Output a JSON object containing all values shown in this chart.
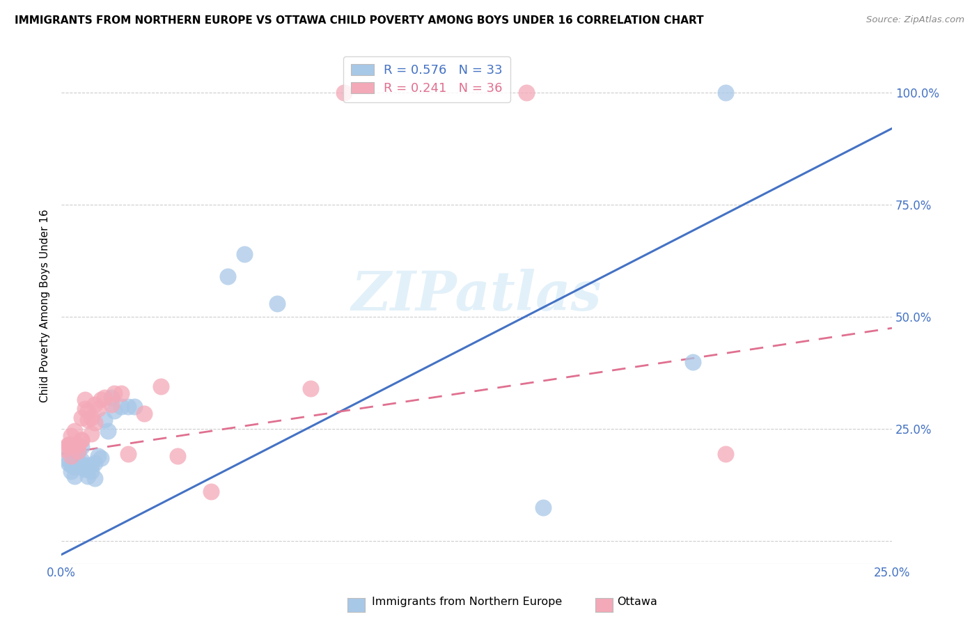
{
  "title": "IMMIGRANTS FROM NORTHERN EUROPE VS OTTAWA CHILD POVERTY AMONG BOYS UNDER 16 CORRELATION CHART",
  "source": "Source: ZipAtlas.com",
  "ylabel": "Child Poverty Among Boys Under 16",
  "xlim": [
    0.0,
    0.25
  ],
  "ylim": [
    -0.05,
    1.1
  ],
  "xticks": [
    0.0,
    0.05,
    0.1,
    0.15,
    0.2,
    0.25
  ],
  "xtick_labels": [
    "0.0%",
    "",
    "",
    "",
    "",
    "25.0%"
  ],
  "ytick_right_vals": [
    0.0,
    0.25,
    0.5,
    0.75,
    1.0
  ],
  "ytick_right_labels": [
    "",
    "25.0%",
    "50.0%",
    "75.0%",
    "100.0%"
  ],
  "legend_blue_R": "R = 0.576",
  "legend_blue_N": "N = 33",
  "legend_pink_R": "R = 0.241",
  "legend_pink_N": "N = 36",
  "blue_color": "#a8c8e8",
  "pink_color": "#f4a9b8",
  "blue_line_color": "#4472c4",
  "pink_line_color": "#e07090",
  "watermark": "ZIPatlas",
  "blue_line_x0": 0.0,
  "blue_line_y0": -0.03,
  "blue_line_x1": 0.25,
  "blue_line_y1": 0.92,
  "pink_line_x0": 0.0,
  "pink_line_y0": 0.195,
  "pink_line_x1": 0.25,
  "pink_line_y1": 0.475,
  "blue_scatter_x": [
    0.001,
    0.002,
    0.003,
    0.003,
    0.004,
    0.004,
    0.005,
    0.005,
    0.006,
    0.006,
    0.007,
    0.007,
    0.008,
    0.008,
    0.009,
    0.009,
    0.01,
    0.01,
    0.011,
    0.012,
    0.013,
    0.014,
    0.015,
    0.016,
    0.018,
    0.02,
    0.022,
    0.05,
    0.055,
    0.065,
    0.145,
    0.19,
    0.2
  ],
  "blue_scatter_y": [
    0.185,
    0.175,
    0.155,
    0.17,
    0.145,
    0.165,
    0.18,
    0.2,
    0.18,
    0.21,
    0.16,
    0.17,
    0.145,
    0.16,
    0.155,
    0.17,
    0.14,
    0.175,
    0.19,
    0.185,
    0.27,
    0.245,
    0.32,
    0.29,
    0.3,
    0.3,
    0.3,
    0.59,
    0.64,
    0.53,
    0.075,
    0.4,
    1.0
  ],
  "pink_scatter_x": [
    0.001,
    0.002,
    0.002,
    0.003,
    0.003,
    0.003,
    0.004,
    0.004,
    0.005,
    0.005,
    0.006,
    0.006,
    0.006,
    0.007,
    0.007,
    0.008,
    0.008,
    0.009,
    0.009,
    0.01,
    0.01,
    0.011,
    0.012,
    0.013,
    0.015,
    0.016,
    0.018,
    0.02,
    0.025,
    0.03,
    0.035,
    0.045,
    0.075,
    0.085,
    0.14,
    0.2
  ],
  "pink_scatter_y": [
    0.205,
    0.215,
    0.215,
    0.215,
    0.19,
    0.235,
    0.215,
    0.245,
    0.215,
    0.2,
    0.275,
    0.225,
    0.225,
    0.295,
    0.315,
    0.27,
    0.29,
    0.24,
    0.275,
    0.305,
    0.265,
    0.295,
    0.315,
    0.32,
    0.305,
    0.33,
    0.33,
    0.195,
    0.285,
    0.345,
    0.19,
    0.11,
    0.34,
    1.0,
    1.0,
    0.195
  ]
}
